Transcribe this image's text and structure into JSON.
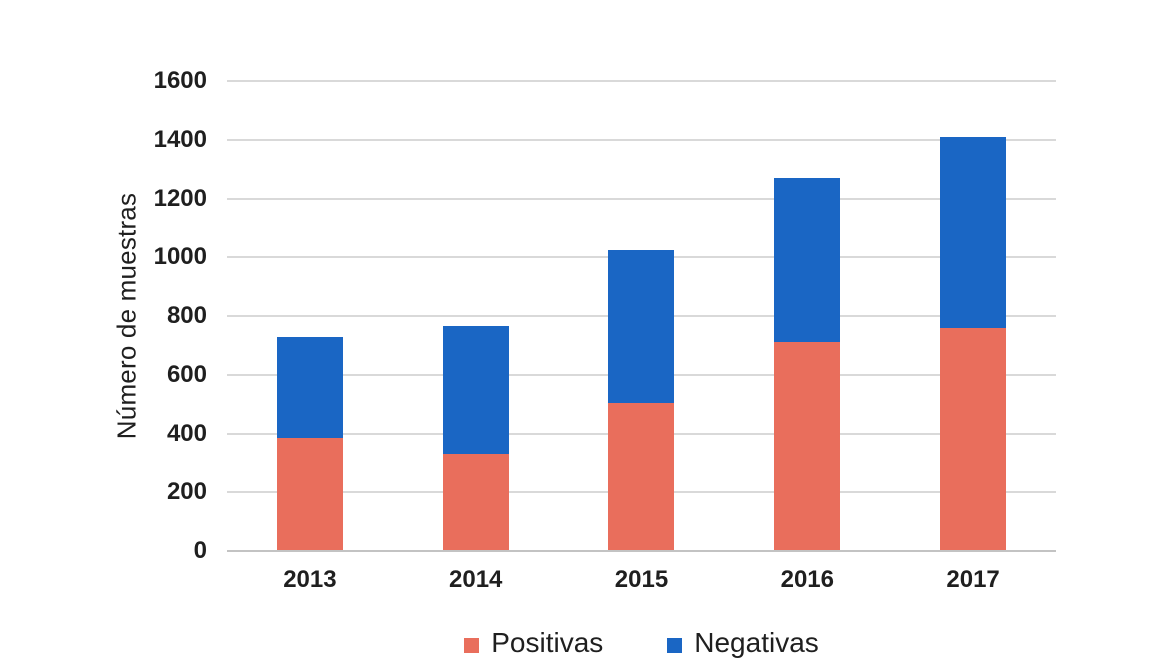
{
  "chart_data": {
    "type": "bar",
    "stacked": true,
    "ylabel": "Número de muestras",
    "categories": [
      "2013",
      "2014",
      "2015",
      "2016",
      "2017"
    ],
    "series": [
      {
        "name": "Positivas",
        "color": "#E96E5C",
        "values": [
          385,
          330,
          505,
          710,
          760
        ]
      },
      {
        "name": "Negativas",
        "color": "#1A66C4",
        "values": [
          345,
          435,
          520,
          560,
          650
        ]
      }
    ],
    "stacked_totals": [
      730,
      765,
      1025,
      1270,
      1410
    ],
    "ylim": [
      0,
      1600
    ],
    "yticks": [
      0,
      200,
      400,
      600,
      800,
      1000,
      1200,
      1400,
      1600
    ],
    "grid": true,
    "legend_position": "bottom"
  },
  "colors": {
    "background": "#FFFFFF",
    "gridline": "#D9D9D9",
    "axis_line": "#C3C3C3",
    "text": "#1F1F1F"
  }
}
